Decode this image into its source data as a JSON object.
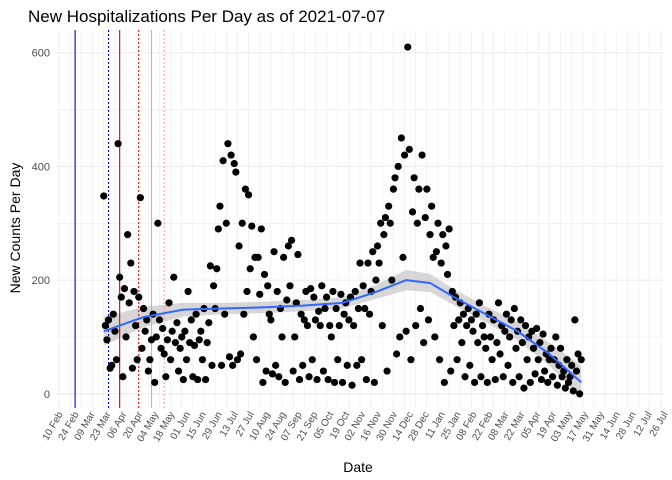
{
  "chart_data": {
    "type": "scatter",
    "title": "New Hospitalizations Per Day as of 2021-07-07",
    "xlabel": "Date",
    "ylabel": "New Counts Per Day",
    "ylim": [
      -25,
      640
    ],
    "y_ticks": [
      0,
      200,
      400,
      600
    ],
    "grid": true,
    "legend": "none",
    "colors": {
      "points": "#000000",
      "smooth_line": "#3366ff",
      "smooth_band": "#bdbdbd",
      "vline_blue": "#0000cc",
      "vline_red": "#dd0000",
      "grid": "#ebebeb"
    },
    "x_tick_labels": [
      "10 Feb",
      "24 Feb",
      "09 Mar",
      "23 Mar",
      "06 Apr",
      "20 Apr",
      "04 May",
      "18 May",
      "01 Jun",
      "15 Jun",
      "29 Jun",
      "13 Jul",
      "27 Jul",
      "10 Aug",
      "24 Aug",
      "07 Sep",
      "21 Sep",
      "05 Oct",
      "19 Oct",
      "02 Nov",
      "16 Nov",
      "30 Nov",
      "14 Dec",
      "28 Dec",
      "11 Jan",
      "25 Jan",
      "08 Feb",
      "22 Feb",
      "08 Mar",
      "22 Mar",
      "05 Apr",
      "19 Apr",
      "03 May",
      "17 May",
      "31 May",
      "14 Jun",
      "28 Jun",
      "12 Jul",
      "26 Jul"
    ],
    "scatter_points": [
      [
        0,
        348
      ],
      [
        1,
        120
      ],
      [
        2,
        95
      ],
      [
        3,
        130
      ],
      [
        4,
        45
      ],
      [
        5,
        50
      ],
      [
        6,
        140
      ],
      [
        7,
        110
      ],
      [
        8,
        60
      ],
      [
        9,
        440
      ],
      [
        10,
        205
      ],
      [
        11,
        170
      ],
      [
        12,
        30
      ],
      [
        13,
        185
      ],
      [
        14,
        100
      ],
      [
        15,
        280
      ],
      [
        16,
        160
      ],
      [
        17,
        230
      ],
      [
        18,
        45
      ],
      [
        19,
        180
      ],
      [
        20,
        120
      ],
      [
        21,
        60
      ],
      [
        22,
        170
      ],
      [
        23,
        345
      ],
      [
        24,
        80
      ],
      [
        25,
        150
      ],
      [
        26,
        110
      ],
      [
        27,
        130
      ],
      [
        28,
        40
      ],
      [
        29,
        60
      ],
      [
        30,
        95
      ],
      [
        31,
        140
      ],
      [
        32,
        20
      ],
      [
        33,
        100
      ],
      [
        34,
        300
      ],
      [
        35,
        130
      ],
      [
        36,
        80
      ],
      [
        37,
        115
      ],
      [
        38,
        70
      ],
      [
        39,
        30
      ],
      [
        40,
        95
      ],
      [
        41,
        160
      ],
      [
        42,
        60
      ],
      [
        43,
        110
      ],
      [
        44,
        205
      ],
      [
        45,
        90
      ],
      [
        46,
        125
      ],
      [
        47,
        40
      ],
      [
        48,
        80
      ],
      [
        49,
        100
      ],
      [
        50,
        25
      ],
      [
        51,
        110
      ],
      [
        52,
        60
      ],
      [
        53,
        180
      ],
      [
        54,
        90
      ],
      [
        55,
        130
      ],
      [
        56,
        30
      ],
      [
        57,
        85
      ],
      [
        58,
        140
      ],
      [
        59,
        25
      ],
      [
        60,
        95
      ],
      [
        61,
        110
      ],
      [
        62,
        60
      ],
      [
        63,
        150
      ],
      [
        64,
        25
      ],
      [
        65,
        90
      ],
      [
        66,
        125
      ],
      [
        67,
        225
      ],
      [
        68,
        50
      ],
      [
        69,
        190
      ],
      [
        70,
        150
      ],
      [
        71,
        220
      ],
      [
        72,
        290
      ],
      [
        73,
        330
      ],
      [
        74,
        50
      ],
      [
        75,
        410
      ],
      [
        76,
        140
      ],
      [
        77,
        300
      ],
      [
        78,
        440
      ],
      [
        79,
        65
      ],
      [
        80,
        420
      ],
      [
        81,
        50
      ],
      [
        82,
        405
      ],
      [
        83,
        390
      ],
      [
        84,
        60
      ],
      [
        85,
        260
      ],
      [
        86,
        70
      ],
      [
        87,
        300
      ],
      [
        88,
        140
      ],
      [
        89,
        360
      ],
      [
        90,
        180
      ],
      [
        91,
        350
      ],
      [
        92,
        220
      ],
      [
        93,
        295
      ],
      [
        94,
        100
      ],
      [
        95,
        240
      ],
      [
        96,
        60
      ],
      [
        97,
        240
      ],
      [
        98,
        175
      ],
      [
        99,
        290
      ],
      [
        100,
        20
      ],
      [
        101,
        210
      ],
      [
        102,
        40
      ],
      [
        103,
        190
      ],
      [
        104,
        140
      ],
      [
        105,
        130
      ],
      [
        106,
        35
      ],
      [
        107,
        250
      ],
      [
        108,
        50
      ],
      [
        109,
        180
      ],
      [
        110,
        30
      ],
      [
        111,
        150
      ],
      [
        112,
        100
      ],
      [
        113,
        240
      ],
      [
        114,
        20
      ],
      [
        115,
        165
      ],
      [
        116,
        260
      ],
      [
        117,
        190
      ],
      [
        118,
        270
      ],
      [
        119,
        40
      ],
      [
        120,
        100
      ],
      [
        121,
        160
      ],
      [
        122,
        245
      ],
      [
        123,
        25
      ],
      [
        124,
        140
      ],
      [
        125,
        50
      ],
      [
        126,
        130
      ],
      [
        127,
        180
      ],
      [
        128,
        120
      ],
      [
        129,
        30
      ],
      [
        130,
        185
      ],
      [
        131,
        60
      ],
      [
        132,
        170
      ],
      [
        133,
        130
      ],
      [
        134,
        25
      ],
      [
        135,
        145
      ],
      [
        136,
        120
      ],
      [
        137,
        190
      ],
      [
        138,
        40
      ],
      [
        139,
        150
      ],
      [
        140,
        170
      ],
      [
        141,
        25
      ],
      [
        142,
        120
      ],
      [
        143,
        100
      ],
      [
        144,
        180
      ],
      [
        145,
        20
      ],
      [
        146,
        150
      ],
      [
        147,
        60
      ],
      [
        148,
        120
      ],
      [
        149,
        175
      ],
      [
        150,
        20
      ],
      [
        151,
        140
      ],
      [
        152,
        160
      ],
      [
        153,
        50
      ],
      [
        154,
        130
      ],
      [
        155,
        170
      ],
      [
        156,
        15
      ],
      [
        157,
        120
      ],
      [
        158,
        180
      ],
      [
        159,
        50
      ],
      [
        160,
        150
      ],
      [
        161,
        230
      ],
      [
        162,
        60
      ],
      [
        163,
        190
      ],
      [
        164,
        150
      ],
      [
        165,
        25
      ],
      [
        166,
        230
      ],
      [
        167,
        140
      ],
      [
        168,
        180
      ],
      [
        169,
        250
      ],
      [
        170,
        20
      ],
      [
        171,
        200
      ],
      [
        172,
        260
      ],
      [
        173,
        230
      ],
      [
        174,
        300
      ],
      [
        175,
        120
      ],
      [
        176,
        280
      ],
      [
        177,
        310
      ],
      [
        178,
        40
      ],
      [
        179,
        330
      ],
      [
        180,
        300
      ],
      [
        181,
        200
      ],
      [
        182,
        360
      ],
      [
        183,
        380
      ],
      [
        184,
        70
      ],
      [
        185,
        400
      ],
      [
        186,
        100
      ],
      [
        187,
        450
      ],
      [
        188,
        240
      ],
      [
        189,
        420
      ],
      [
        190,
        110
      ],
      [
        191,
        610
      ],
      [
        192,
        430
      ],
      [
        193,
        60
      ],
      [
        194,
        320
      ],
      [
        195,
        380
      ],
      [
        196,
        120
      ],
      [
        197,
        300
      ],
      [
        198,
        360
      ],
      [
        199,
        150
      ],
      [
        200,
        420
      ],
      [
        201,
        90
      ],
      [
        202,
        310
      ],
      [
        203,
        360
      ],
      [
        204,
        130
      ],
      [
        205,
        280
      ],
      [
        206,
        330
      ],
      [
        207,
        240
      ],
      [
        208,
        100
      ],
      [
        209,
        250
      ],
      [
        210,
        300
      ],
      [
        211,
        60
      ],
      [
        212,
        230
      ],
      [
        213,
        280
      ],
      [
        214,
        20
      ],
      [
        215,
        260
      ],
      [
        216,
        210
      ],
      [
        217,
        290
      ],
      [
        218,
        40
      ],
      [
        219,
        180
      ],
      [
        220,
        120
      ],
      [
        221,
        170
      ],
      [
        222,
        60
      ],
      [
        223,
        130
      ],
      [
        224,
        160
      ],
      [
        225,
        90
      ],
      [
        226,
        140
      ],
      [
        227,
        30
      ],
      [
        228,
        120
      ],
      [
        229,
        150
      ],
      [
        230,
        50
      ],
      [
        231,
        130
      ],
      [
        232,
        110
      ],
      [
        233,
        20
      ],
      [
        234,
        140
      ],
      [
        235,
        90
      ],
      [
        236,
        160
      ],
      [
        237,
        30
      ],
      [
        238,
        120
      ],
      [
        239,
        100
      ],
      [
        240,
        80
      ],
      [
        241,
        20
      ],
      [
        242,
        140
      ],
      [
        243,
        100
      ],
      [
        244,
        60
      ],
      [
        245,
        130
      ],
      [
        246,
        25
      ],
      [
        247,
        90
      ],
      [
        248,
        160
      ],
      [
        249,
        70
      ],
      [
        250,
        120
      ],
      [
        251,
        30
      ],
      [
        252,
        110
      ],
      [
        253,
        140
      ],
      [
        254,
        50
      ],
      [
        255,
        100
      ],
      [
        256,
        130
      ],
      [
        257,
        20
      ],
      [
        258,
        150
      ],
      [
        259,
        80
      ],
      [
        260,
        110
      ],
      [
        261,
        30
      ],
      [
        262,
        130
      ],
      [
        263,
        90
      ],
      [
        264,
        10
      ],
      [
        265,
        120
      ],
      [
        266,
        60
      ],
      [
        267,
        100
      ],
      [
        268,
        20
      ],
      [
        269,
        110
      ],
      [
        270,
        80
      ],
      [
        271,
        35
      ],
      [
        272,
        115
      ],
      [
        273,
        60
      ],
      [
        274,
        90
      ],
      [
        275,
        25
      ],
      [
        276,
        105
      ],
      [
        277,
        40
      ],
      [
        278,
        70
      ],
      [
        279,
        20
      ],
      [
        280,
        60
      ],
      [
        281,
        80
      ],
      [
        282,
        30
      ],
      [
        283,
        60
      ],
      [
        284,
        100
      ],
      [
        285,
        15
      ],
      [
        286,
        50
      ],
      [
        287,
        80
      ],
      [
        288,
        30
      ],
      [
        289,
        40
      ],
      [
        290,
        10
      ],
      [
        291,
        60
      ],
      [
        292,
        20
      ],
      [
        293,
        30
      ],
      [
        294,
        50
      ],
      [
        295,
        5
      ],
      [
        296,
        130
      ],
      [
        297,
        40
      ],
      [
        298,
        70
      ],
      [
        299,
        0
      ],
      [
        300,
        60
      ]
    ],
    "smooth_line": [
      [
        0,
        110
      ],
      [
        25,
        135
      ],
      [
        50,
        148
      ],
      [
        75,
        150
      ],
      [
        100,
        152
      ],
      [
        125,
        155
      ],
      [
        150,
        160
      ],
      [
        170,
        178
      ],
      [
        190,
        200
      ],
      [
        205,
        195
      ],
      [
        220,
        170
      ],
      [
        240,
        140
      ],
      [
        260,
        110
      ],
      [
        280,
        70
      ],
      [
        300,
        20
      ]
    ],
    "smooth_band_halfwidth": [
      [
        0,
        25
      ],
      [
        25,
        18
      ],
      [
        50,
        12
      ],
      [
        75,
        10
      ],
      [
        100,
        10
      ],
      [
        125,
        10
      ],
      [
        150,
        10
      ],
      [
        170,
        12
      ],
      [
        190,
        18
      ],
      [
        205,
        16
      ],
      [
        220,
        14
      ],
      [
        240,
        14
      ],
      [
        260,
        16
      ],
      [
        280,
        20
      ],
      [
        300,
        30
      ]
    ],
    "vertical_lines": [
      {
        "x": -18,
        "color": "blue",
        "style": "solid"
      },
      {
        "x": 3,
        "color": "blue",
        "style": "dotted"
      },
      {
        "x": 10,
        "color": "red",
        "style": "solid"
      },
      {
        "x": 22,
        "color": "red",
        "style": "dotted"
      },
      {
        "x": 30,
        "color": "pink",
        "style": "solid"
      },
      {
        "x": 38,
        "color": "pink",
        "style": "dotted"
      }
    ]
  }
}
